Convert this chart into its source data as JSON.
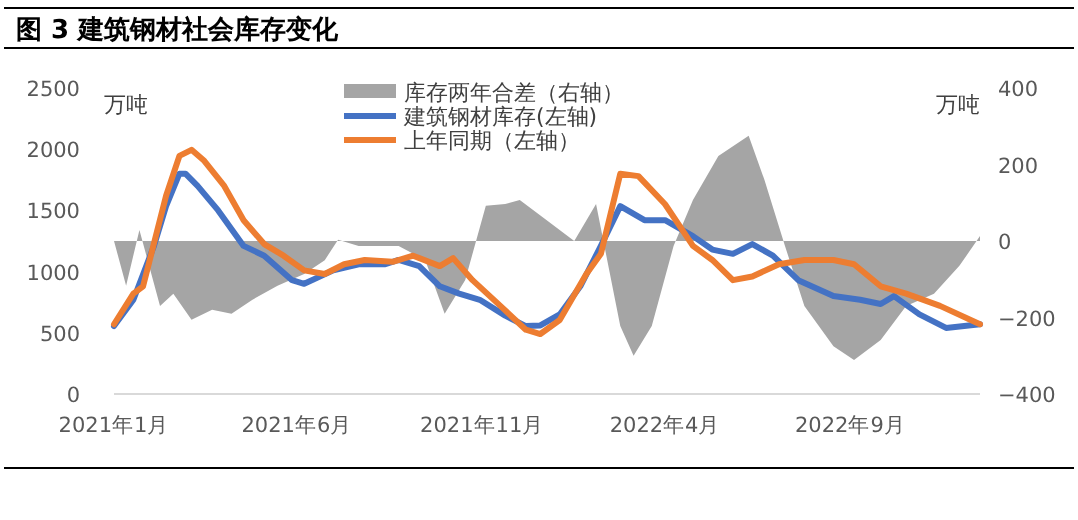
{
  "chart_data": {
    "type": "line",
    "title": "图 3 建筑钢材社会库存变化",
    "ylabel": "万吨",
    "y2label": "万吨",
    "xlim": [
      "2021-01-01",
      "2022-12-17"
    ],
    "xticks": [
      {
        "value": "2021-01-01",
        "label": "2021年1月"
      },
      {
        "value": "2021-06-01",
        "label": "2021年6月"
      },
      {
        "value": "2021-11-01",
        "label": "2021年11月"
      },
      {
        "value": "2022-04-01",
        "label": "2022年4月"
      },
      {
        "value": "2022-09-01",
        "label": "2022年9月"
      }
    ],
    "ylim": [
      0,
      2500
    ],
    "yticks": [
      0,
      500,
      1000,
      1500,
      2000,
      2500
    ],
    "y2lim": [
      -400,
      400
    ],
    "y2ticks": [
      -400,
      -200,
      0,
      200,
      400
    ],
    "grid": false,
    "legend": "top",
    "marker": "none",
    "line_style": "solid",
    "series": [
      {
        "name": "库存两年合差（右轴）",
        "type": "area",
        "axis": "y2",
        "color": "#a5a5a5",
        "x": [
          "2021-01-01",
          "2021-01-11",
          "2021-01-22",
          "2021-02-08",
          "2021-02-19",
          "2021-03-06",
          "2021-03-23",
          "2021-04-08",
          "2021-04-25",
          "2021-05-16",
          "2021-06-07",
          "2021-06-24",
          "2021-07-05",
          "2021-07-22",
          "2021-08-24",
          "2021-09-15",
          "2021-10-01",
          "2021-10-18",
          "2021-11-04",
          "2021-11-20",
          "2021-12-02",
          "2021-12-24",
          "2022-01-16",
          "2022-02-03",
          "2022-02-23",
          "2022-03-06",
          "2022-03-21",
          "2022-04-08",
          "2022-04-24",
          "2022-05-15",
          "2022-06-09",
          "2022-06-22",
          "2022-07-09",
          "2022-07-25",
          "2022-08-18",
          "2022-09-04",
          "2022-09-26",
          "2022-10-17",
          "2022-11-09",
          "2022-11-30",
          "2022-12-17"
        ],
        "values": [
          0,
          -117,
          29,
          -170,
          -138,
          -206,
          -180,
          -190,
          -154,
          -117,
          -86,
          -50,
          3,
          -13,
          -13,
          -50,
          -190,
          -102,
          92,
          97,
          107,
          55,
          0,
          97,
          -222,
          -300,
          -222,
          -13,
          107,
          222,
          275,
          160,
          -13,
          -170,
          -275,
          -311,
          -259,
          -170,
          -138,
          -65,
          13
        ]
      },
      {
        "name": "建筑钢材库存(左轴)",
        "color": "#4472c4",
        "x": [
          "2021-01-01",
          "2021-01-17",
          "2021-02-03",
          "2021-02-13",
          "2021-02-24",
          "2021-03-01",
          "2021-03-11",
          "2021-03-28",
          "2021-04-18",
          "2021-05-05",
          "2021-05-28",
          "2021-06-07",
          "2021-07-01",
          "2021-07-22",
          "2021-08-13",
          "2021-08-24",
          "2021-09-10",
          "2021-09-27",
          "2021-10-13",
          "2021-10-30",
          "2021-11-20",
          "2021-12-07",
          "2021-12-19",
          "2022-01-04",
          "2022-01-21",
          "2022-02-07",
          "2022-02-23",
          "2022-03-15",
          "2022-04-01",
          "2022-04-24",
          "2022-05-10",
          "2022-05-27",
          "2022-06-12",
          "2022-06-29",
          "2022-07-20",
          "2022-08-18",
          "2022-09-09",
          "2022-09-26",
          "2022-10-07",
          "2022-10-28",
          "2022-11-19",
          "2022-12-17"
        ],
        "values": [
          555,
          770,
          1210,
          1535,
          1800,
          1800,
          1700,
          1500,
          1210,
          1130,
          930,
          900,
          1010,
          1060,
          1060,
          1095,
          1045,
          880,
          820,
          770,
          640,
          555,
          560,
          650,
          880,
          1210,
          1535,
          1420,
          1420,
          1290,
          1180,
          1145,
          1225,
          1130,
          930,
          800,
          770,
          735,
          800,
          650,
          540,
          570
        ]
      },
      {
        "name": "上年同期（左轴）",
        "color": "#ed7d31",
        "x": [
          "2021-01-01",
          "2021-01-17",
          "2021-01-25",
          "2021-02-13",
          "2021-02-24",
          "2021-03-06",
          "2021-03-16",
          "2021-04-02",
          "2021-04-18",
          "2021-05-05",
          "2021-05-21",
          "2021-06-07",
          "2021-06-24",
          "2021-07-10",
          "2021-07-27",
          "2021-08-19",
          "2021-09-05",
          "2021-09-27",
          "2021-10-08",
          "2021-10-24",
          "2021-11-16",
          "2021-12-07",
          "2021-12-19",
          "2022-01-04",
          "2022-01-26",
          "2022-02-07",
          "2022-02-23",
          "2022-03-10",
          "2022-04-01",
          "2022-04-24",
          "2022-05-10",
          "2022-05-27",
          "2022-06-12",
          "2022-07-04",
          "2022-07-25",
          "2022-08-18",
          "2022-09-04",
          "2022-09-26",
          "2022-10-17",
          "2022-11-14",
          "2022-12-17"
        ],
        "values": [
          570,
          820,
          880,
          1620,
          1945,
          1995,
          1910,
          1700,
          1420,
          1225,
          1130,
          1010,
          980,
          1060,
          1095,
          1080,
          1130,
          1045,
          1110,
          930,
          720,
          525,
          490,
          605,
          980,
          1145,
          1800,
          1780,
          1550,
          1210,
          1095,
          930,
          960,
          1060,
          1095,
          1095,
          1060,
          880,
          820,
          720,
          570
        ]
      }
    ]
  }
}
